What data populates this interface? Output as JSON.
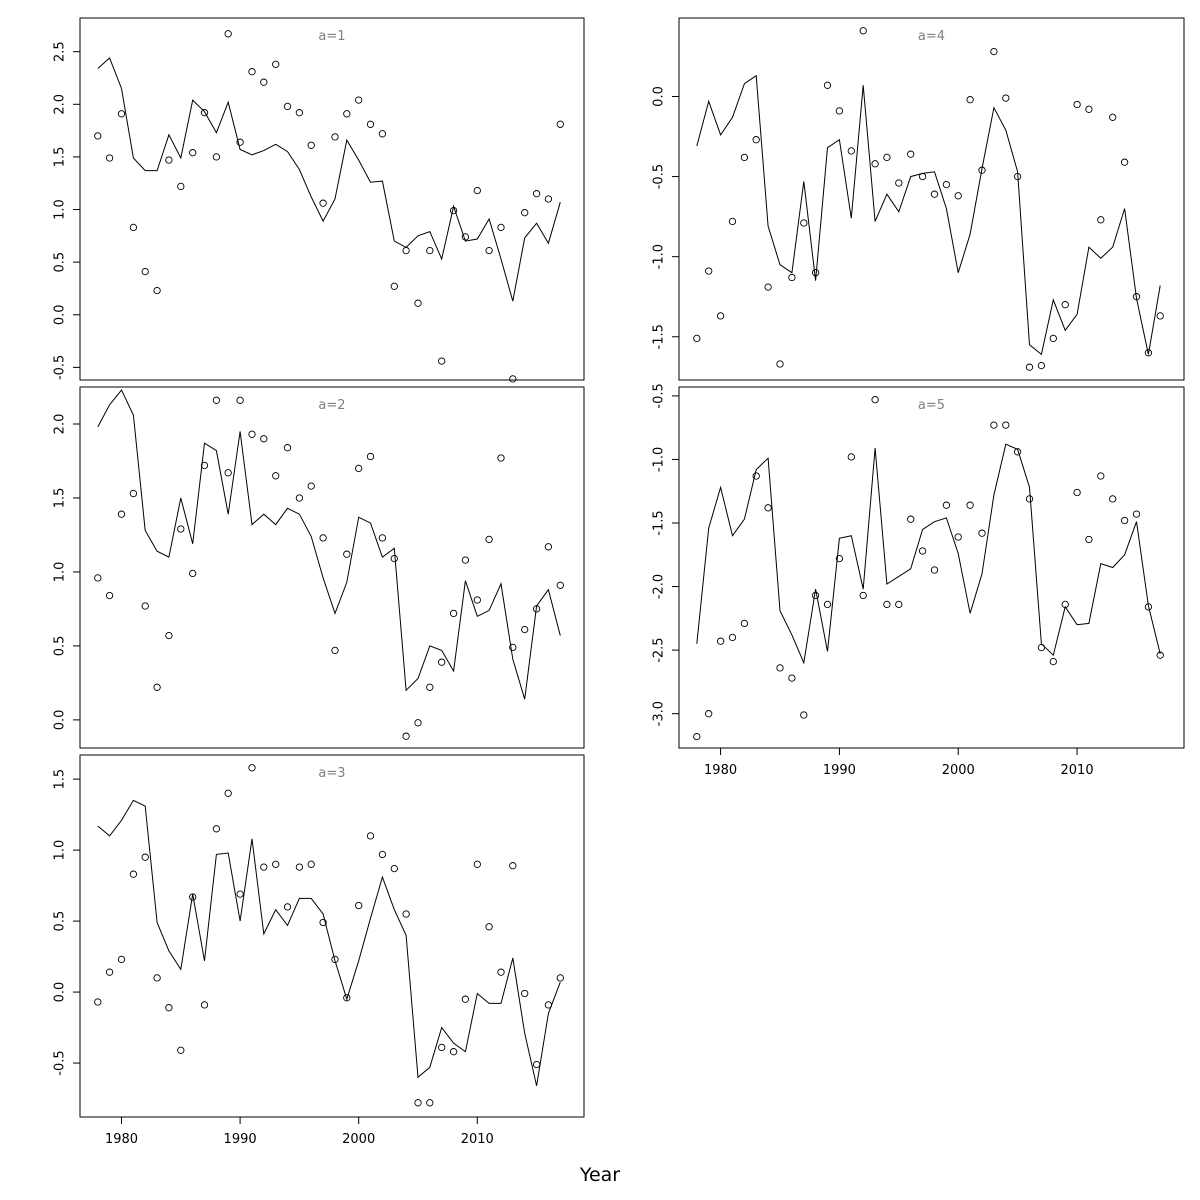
{
  "figure": {
    "xlabel": "Year"
  },
  "chart_data": [
    {
      "type": "line",
      "title": "a=1",
      "x": [
        1978,
        1979,
        1980,
        1981,
        1982,
        1983,
        1984,
        1985,
        1986,
        1987,
        1988,
        1989,
        1990,
        1991,
        1992,
        1993,
        1994,
        1995,
        1996,
        1997,
        1998,
        1999,
        2000,
        2001,
        2002,
        2003,
        2004,
        2005,
        2006,
        2007,
        2008,
        2009,
        2010,
        2011,
        2012,
        2013,
        2014,
        2015,
        2016,
        2017
      ],
      "ylim": [
        -0.62,
        2.82
      ],
      "yticks": [
        -0.5,
        0.0,
        0.5,
        1.0,
        1.5,
        2.0,
        2.5
      ],
      "ytick_labels": [
        "-0.5",
        "0.0",
        "0.5",
        "1.0",
        "1.5",
        "2.0",
        "2.5"
      ],
      "series": [
        {
          "kind": "line",
          "values": [
            2.34,
            2.44,
            2.15,
            1.49,
            1.37,
            1.37,
            1.71,
            1.49,
            2.04,
            1.93,
            1.73,
            2.02,
            1.57,
            1.52,
            1.56,
            1.62,
            1.55,
            1.38,
            1.12,
            0.89,
            1.1,
            1.66,
            1.47,
            1.26,
            1.27,
            0.7,
            0.64,
            0.75,
            0.79,
            0.53,
            1.03,
            0.7,
            0.72,
            0.91,
            0.53,
            0.13,
            0.73,
            0.87,
            0.68,
            1.07
          ]
        },
        {
          "kind": "points",
          "values": [
            1.7,
            1.49,
            1.91,
            0.83,
            0.41,
            0.23,
            1.47,
            1.22,
            1.54,
            1.92,
            1.5,
            2.67,
            1.64,
            2.31,
            2.21,
            2.38,
            1.98,
            1.92,
            1.61,
            1.06,
            1.69,
            1.91,
            2.04,
            1.81,
            1.72,
            0.27,
            0.61,
            0.11,
            0.61,
            -0.44,
            0.99,
            0.74,
            1.18,
            0.61,
            0.83,
            -0.61,
            0.97,
            1.15,
            1.1,
            1.81
          ]
        }
      ]
    },
    {
      "type": "line",
      "title": "a=2",
      "x": [
        1978,
        1979,
        1980,
        1981,
        1982,
        1983,
        1984,
        1985,
        1986,
        1987,
        1988,
        1989,
        1990,
        1991,
        1992,
        1993,
        1994,
        1995,
        1996,
        1997,
        1998,
        1999,
        2000,
        2001,
        2002,
        2003,
        2004,
        2005,
        2006,
        2007,
        2008,
        2009,
        2010,
        2011,
        2012,
        2013,
        2014,
        2015,
        2016,
        2017
      ],
      "ylim": [
        -0.19,
        2.25
      ],
      "yticks": [
        0.0,
        0.5,
        1.0,
        1.5,
        2.0
      ],
      "ytick_labels": [
        "0.0",
        "0.5",
        "1.0",
        "1.5",
        "2.0"
      ],
      "series": [
        {
          "kind": "line",
          "values": [
            1.98,
            2.13,
            2.23,
            2.06,
            1.28,
            1.14,
            1.1,
            1.5,
            1.19,
            1.87,
            1.82,
            1.39,
            1.95,
            1.32,
            1.39,
            1.32,
            1.43,
            1.39,
            1.24,
            0.96,
            0.72,
            0.93,
            1.37,
            1.33,
            1.1,
            1.16,
            0.2,
            0.28,
            0.5,
            0.47,
            0.33,
            0.94,
            0.7,
            0.74,
            0.92,
            0.41,
            0.14,
            0.77,
            0.88,
            0.57
          ]
        },
        {
          "kind": "points",
          "values": [
            0.96,
            0.84,
            1.39,
            1.53,
            0.77,
            0.22,
            0.57,
            1.29,
            0.99,
            1.72,
            2.16,
            1.67,
            2.16,
            1.93,
            1.9,
            1.65,
            1.84,
            1.5,
            1.58,
            1.23,
            0.47,
            1.12,
            1.7,
            1.78,
            1.23,
            1.09,
            -0.11,
            -0.02,
            0.22,
            0.39,
            0.72,
            1.08,
            0.81,
            1.22,
            1.77,
            0.49,
            0.61,
            0.75,
            1.17,
            0.91
          ]
        }
      ]
    },
    {
      "type": "line",
      "title": "a=3",
      "x": [
        1978,
        1979,
        1980,
        1981,
        1982,
        1983,
        1984,
        1985,
        1986,
        1987,
        1988,
        1989,
        1990,
        1991,
        1992,
        1993,
        1994,
        1995,
        1996,
        1997,
        1998,
        1999,
        2000,
        2001,
        2002,
        2003,
        2004,
        2005,
        2006,
        2007,
        2008,
        2009,
        2010,
        2011,
        2012,
        2013,
        2014,
        2015,
        2016,
        2017
      ],
      "ylim": [
        -0.88,
        1.67
      ],
      "yticks": [
        -0.5,
        0.0,
        0.5,
        1.0,
        1.5
      ],
      "ytick_labels": [
        "-0.5",
        "0.0",
        "0.5",
        "1.0",
        "1.5"
      ],
      "series": [
        {
          "kind": "line",
          "values": [
            1.17,
            1.1,
            1.21,
            1.35,
            1.31,
            0.49,
            0.29,
            0.16,
            0.69,
            0.22,
            0.97,
            0.98,
            0.5,
            1.08,
            0.41,
            0.58,
            0.47,
            0.66,
            0.66,
            0.55,
            0.22,
            -0.05,
            0.22,
            0.52,
            0.81,
            0.58,
            0.4,
            -0.6,
            -0.53,
            -0.25,
            -0.36,
            -0.42,
            -0.01,
            -0.08,
            -0.08,
            0.24,
            -0.29,
            -0.66,
            -0.15,
            0.07
          ]
        },
        {
          "kind": "points",
          "values": [
            -0.07,
            0.14,
            0.23,
            0.83,
            0.95,
            0.1,
            -0.11,
            -0.41,
            0.67,
            -0.09,
            1.15,
            1.4,
            0.69,
            1.58,
            0.88,
            0.9,
            0.6,
            0.88,
            0.9,
            0.49,
            0.23,
            -0.04,
            0.61,
            1.1,
            0.97,
            0.87,
            0.55,
            -0.78,
            -0.78,
            -0.39,
            -0.42,
            -0.05,
            0.9,
            0.46,
            0.14,
            0.89,
            -0.01,
            -0.51,
            -0.09,
            0.1
          ]
        }
      ]
    },
    {
      "type": "line",
      "title": "a=4",
      "x": [
        1978,
        1979,
        1980,
        1981,
        1982,
        1983,
        1984,
        1985,
        1986,
        1987,
        1988,
        1989,
        1990,
        1991,
        1992,
        1993,
        1994,
        1995,
        1996,
        1997,
        1998,
        1999,
        2000,
        2001,
        2002,
        2003,
        2004,
        2005,
        2006,
        2007,
        2008,
        2009,
        2010,
        2011,
        2012,
        2013,
        2014,
        2015,
        2016,
        2017
      ],
      "ylim": [
        -1.77,
        0.49
      ],
      "yticks": [
        -1.5,
        -1.0,
        -0.5,
        0.0
      ],
      "ytick_labels": [
        "-1.5",
        "-1.0",
        "-0.5",
        "0.0"
      ],
      "series": [
        {
          "kind": "line",
          "values": [
            -0.31,
            -0.03,
            -0.24,
            -0.13,
            0.08,
            0.13,
            -0.81,
            -1.05,
            -1.1,
            -0.53,
            -1.15,
            -0.32,
            -0.27,
            -0.76,
            0.07,
            -0.78,
            -0.61,
            -0.72,
            -0.5,
            -0.48,
            -0.47,
            -0.7,
            -1.1,
            -0.86,
            -0.45,
            -0.07,
            -0.21,
            -0.47,
            -1.55,
            -1.61,
            -1.27,
            -1.46,
            -1.36,
            -0.94,
            -1.01,
            -0.94,
            -0.7,
            -1.26,
            -1.61,
            -1.18
          ]
        },
        {
          "kind": "points",
          "values": [
            -1.51,
            -1.09,
            -1.37,
            -0.78,
            -0.38,
            -0.27,
            -1.19,
            -1.67,
            -1.13,
            -0.79,
            -1.1,
            0.07,
            -0.09,
            -0.34,
            0.41,
            -0.42,
            -0.38,
            -0.54,
            -0.36,
            -0.5,
            -0.61,
            -0.55,
            -0.62,
            -0.02,
            -0.46,
            0.28,
            -0.01,
            -0.5,
            -1.69,
            -1.68,
            -1.51,
            -1.3,
            -0.05,
            -0.08,
            -0.77,
            -0.13,
            -0.41,
            -1.25,
            -1.6,
            -1.37
          ]
        }
      ]
    },
    {
      "type": "line",
      "title": "a=5",
      "x": [
        1978,
        1979,
        1980,
        1981,
        1982,
        1983,
        1984,
        1985,
        1986,
        1987,
        1988,
        1989,
        1990,
        1991,
        1992,
        1993,
        1994,
        1995,
        1996,
        1997,
        1998,
        1999,
        2000,
        2001,
        2002,
        2003,
        2004,
        2005,
        2006,
        2007,
        2008,
        2009,
        2010,
        2011,
        2012,
        2013,
        2014,
        2015,
        2016,
        2017
      ],
      "ylim": [
        -3.27,
        -0.43
      ],
      "yticks": [
        -3.0,
        -2.5,
        -2.0,
        -1.5,
        -1.0,
        -0.5
      ],
      "ytick_labels": [
        "-3.0",
        "-2.5",
        "-2.0",
        "-1.5",
        "-1.0",
        "-0.5"
      ],
      "series": [
        {
          "kind": "line",
          "values": [
            -2.45,
            -1.54,
            -1.22,
            -1.6,
            -1.47,
            -1.08,
            -0.99,
            -2.19,
            -2.38,
            -2.6,
            -2.02,
            -2.51,
            -1.62,
            -1.6,
            -2.02,
            -0.91,
            -1.98,
            -1.92,
            -1.86,
            -1.55,
            -1.49,
            -1.46,
            -1.74,
            -2.21,
            -1.9,
            -1.28,
            -0.88,
            -0.92,
            -1.22,
            -2.45,
            -2.54,
            -2.16,
            -2.3,
            -2.29,
            -1.82,
            -1.85,
            -1.75,
            -1.49,
            -2.15,
            -2.53
          ]
        },
        {
          "kind": "points",
          "values": [
            -3.18,
            -3.0,
            -2.43,
            -2.4,
            -2.29,
            -1.13,
            -1.38,
            -2.64,
            -2.72,
            -3.01,
            -2.07,
            -2.14,
            -1.78,
            -0.98,
            -2.07,
            -0.53,
            -2.14,
            -2.14,
            -1.47,
            -1.72,
            -1.87,
            -1.36,
            -1.61,
            -1.36,
            -1.58,
            -0.73,
            -0.73,
            -0.94,
            -1.31,
            -2.48,
            -2.59,
            -2.14,
            -1.26,
            -1.63,
            -1.13,
            -1.31,
            -1.48,
            -1.43,
            -2.16,
            -2.54
          ]
        }
      ]
    }
  ],
  "axes": {
    "xticks": [
      1980,
      1990,
      2000,
      2010
    ],
    "xtick_labels": [
      "1980",
      "1990",
      "2000",
      "2010"
    ],
    "xlim": [
      1976.5,
      2019.0
    ]
  }
}
